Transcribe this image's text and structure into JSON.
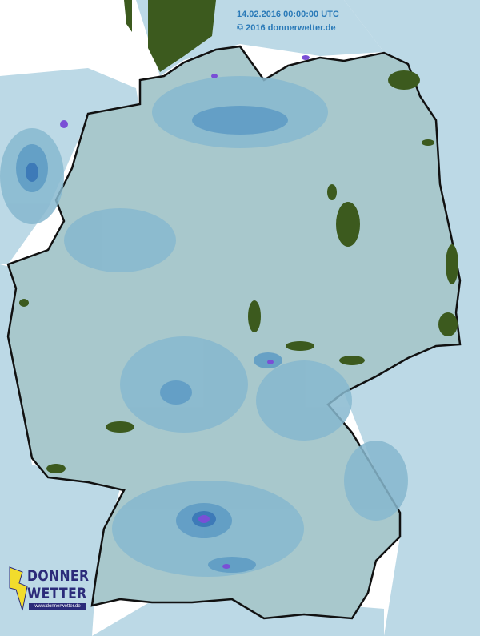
{
  "header": {
    "timestamp": "14.02.2016 00:00:00 UTC",
    "copyright": "© 2016 donnerwetter.de"
  },
  "logo": {
    "line1": "DONNER",
    "line2": "WETTER",
    "url": "www.donnerwetter.de",
    "icon": "lightning-bolt-icon"
  },
  "colors": {
    "sea": "#ffffff",
    "neighbor_land": "#bcd9e6",
    "germany_base": "#a8c8cc",
    "rain_light": "#87b8cf",
    "rain_moderate": "#5f9cc4",
    "rain_heavy": "#3d7ab8",
    "rain_intense": "#7a4fd6",
    "forest_highland": "#3c5a1e"
  }
}
